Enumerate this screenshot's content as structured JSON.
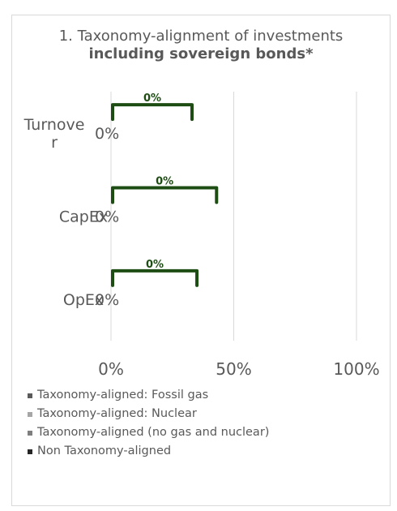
{
  "chart_data": {
    "type": "bar",
    "orientation": "horizontal",
    "title": {
      "prefix": "1. Taxonomy-alignment of investments ",
      "bold": "including sovereign bonds*"
    },
    "categories": [
      "Turnover",
      "CapEx",
      "OpEx"
    ],
    "category_label_lines": [
      [
        "Turnove",
        "r"
      ],
      [
        "CapEx"
      ],
      [
        "OpEx"
      ]
    ],
    "value_labels": [
      "0%",
      "0%",
      "0%"
    ],
    "bracket_labels": [
      "0%",
      "0%",
      "0%"
    ],
    "bracket_spans": [
      [
        0,
        33
      ],
      [
        0,
        43
      ],
      [
        0,
        35
      ]
    ],
    "bracket_color": "#1e4d14",
    "xlim": [
      0,
      100
    ],
    "x_ticks": [
      0,
      50,
      100
    ],
    "x_tick_labels": [
      "0%",
      "50%",
      "100%"
    ],
    "grid": true,
    "legend_position": "bottom",
    "series": [
      {
        "name": "Taxonomy-aligned: Fossil gas",
        "color": "#5a5a5a",
        "values": [
          0,
          0,
          0
        ]
      },
      {
        "name": "Taxonomy-aligned: Nuclear",
        "color": "#a6a6a6",
        "values": [
          0,
          0,
          0
        ]
      },
      {
        "name": "Taxonomy-aligned (no gas and nuclear)",
        "color": "#7f7f7f",
        "values": [
          0,
          0,
          0
        ]
      },
      {
        "name": "Non Taxonomy-aligned",
        "color": "#262626",
        "values": [
          0,
          0,
          0
        ]
      }
    ]
  }
}
